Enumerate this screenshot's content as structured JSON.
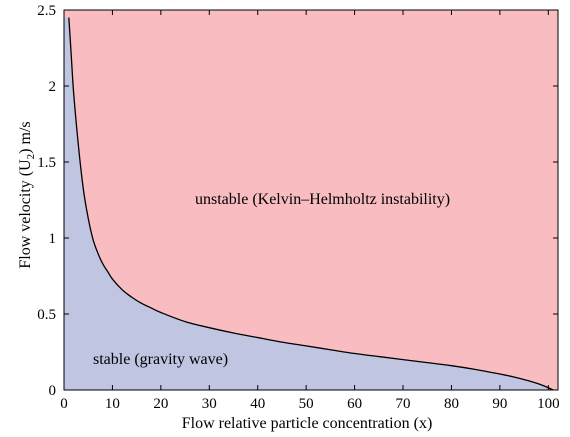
{
  "chart_data": {
    "type": "area",
    "title": "",
    "xlabel": "Flow relative particle concentration (x)",
    "ylabel_main": "Flow velocity (U",
    "ylabel_sub": "2",
    "ylabel_tail": ") m/s",
    "xlim": [
      0,
      102
    ],
    "ylim": [
      0,
      2.5
    ],
    "xticks": [
      0,
      10,
      20,
      30,
      40,
      50,
      60,
      70,
      80,
      90,
      100
    ],
    "yticks": [
      0,
      0.5,
      1,
      1.5,
      2,
      2.5
    ],
    "ytick_labels": [
      "0",
      "0.5",
      "1",
      "1.5",
      "2",
      "2.5"
    ],
    "grid": false,
    "regions": {
      "unstable": {
        "label": "unstable (Kelvin–Helmholtz instability)",
        "color": "#f8bcc1"
      },
      "stable": {
        "label": "stable (gravity wave)",
        "color": "#c0c5e2"
      }
    },
    "boundary": {
      "x": [
        1,
        1.5,
        2,
        3,
        4,
        5,
        6,
        7,
        8,
        9,
        10,
        12,
        14,
        16,
        18,
        20,
        25,
        30,
        35,
        40,
        45,
        50,
        55,
        60,
        65,
        70,
        75,
        80,
        85,
        90,
        93,
        96,
        98,
        100,
        101
      ],
      "y": [
        2.45,
        2.2,
        1.95,
        1.6,
        1.32,
        1.13,
        0.99,
        0.9,
        0.83,
        0.78,
        0.73,
        0.66,
        0.61,
        0.57,
        0.54,
        0.51,
        0.45,
        0.41,
        0.375,
        0.345,
        0.315,
        0.29,
        0.265,
        0.24,
        0.22,
        0.2,
        0.18,
        0.16,
        0.135,
        0.105,
        0.085,
        0.06,
        0.04,
        0.015,
        0.0
      ]
    }
  }
}
